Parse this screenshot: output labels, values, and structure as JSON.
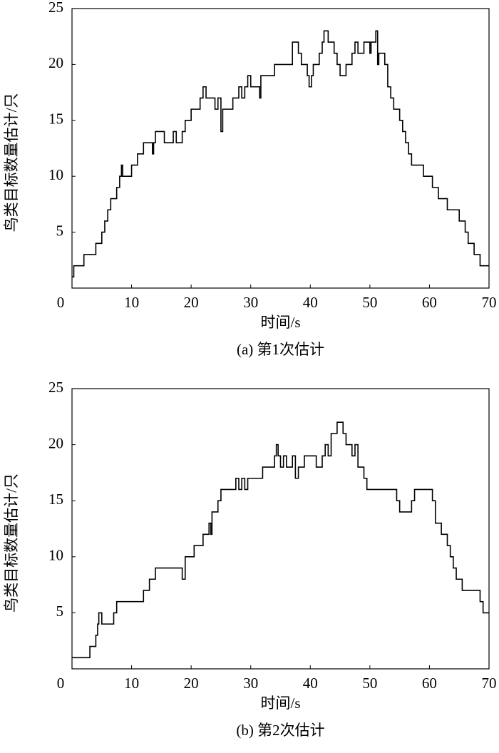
{
  "chart_data": [
    {
      "type": "line",
      "drawstyle": "steps-post",
      "xlabel": "时间/s",
      "ylabel": "鸟类目标数量估计/只",
      "caption": "(a) 第1次估计",
      "xlim": [
        0,
        70
      ],
      "ylim": [
        0,
        25
      ],
      "xticks": [
        0,
        10,
        20,
        30,
        40,
        50,
        60,
        70
      ],
      "yticks": [
        5,
        10,
        15,
        20,
        25
      ],
      "grid": false,
      "x": [
        0,
        0.3,
        2,
        4,
        5,
        5.5,
        6,
        6.5,
        7.5,
        8,
        8.3,
        8.5,
        10,
        11,
        12,
        13.5,
        13.7,
        14,
        15.5,
        17,
        17.5,
        18.5,
        19,
        20,
        21.5,
        22,
        22.5,
        24,
        24.5,
        25,
        25.3,
        27,
        28,
        28.5,
        29,
        29.5,
        30,
        31.5,
        31.7,
        34,
        37,
        38,
        38.5,
        39.5,
        39.8,
        40.2,
        40.5,
        41.5,
        42,
        42.3,
        43,
        44,
        44.5,
        45,
        46,
        47,
        47.5,
        48,
        49,
        50,
        50.2,
        51,
        51.3,
        51.5,
        52.5,
        53,
        53.5,
        54,
        55,
        55.5,
        56,
        56.5,
        57,
        59,
        60.5,
        61.5,
        63,
        65,
        66,
        66.5,
        67.5,
        68.5,
        70
      ],
      "series": [
        {
          "color": "#000000",
          "values": [
            1,
            2,
            3,
            4,
            5,
            6,
            7,
            8,
            9,
            10,
            11,
            10,
            11,
            12,
            13,
            12,
            13,
            14,
            13,
            14,
            13,
            14,
            15,
            16,
            17,
            18,
            17,
            16,
            17,
            14,
            16,
            17,
            18,
            17,
            18,
            19,
            18,
            17,
            19,
            20,
            22,
            21,
            20,
            19,
            18,
            19,
            20,
            21,
            22,
            23,
            22,
            21,
            20,
            19,
            20,
            21,
            22,
            21,
            22,
            21,
            22,
            23,
            20,
            21,
            20,
            18,
            17,
            16,
            15,
            14,
            13,
            12,
            11,
            10,
            9,
            8,
            7,
            6,
            5,
            4,
            3,
            2,
            2
          ]
        }
      ]
    },
    {
      "type": "line",
      "drawstyle": "steps-post",
      "xlabel": "时间/s",
      "ylabel": "鸟类目标数量估计/只",
      "caption": "(b) 第2次估计",
      "xlim": [
        0,
        70
      ],
      "ylim": [
        0,
        25
      ],
      "xticks": [
        0,
        10,
        20,
        30,
        40,
        50,
        60,
        70
      ],
      "yticks": [
        5,
        10,
        15,
        20,
        25
      ],
      "grid": false,
      "x": [
        0,
        3,
        4,
        4.3,
        4.5,
        5,
        7,
        7.5,
        12,
        13,
        14,
        18.5,
        19,
        20.2,
        20.5,
        22,
        23,
        23.3,
        23.5,
        24.5,
        25,
        27.5,
        28,
        28.5,
        29,
        29.5,
        32,
        34,
        34.3,
        34.6,
        35,
        35.5,
        36,
        37,
        37.5,
        38,
        39,
        41,
        42,
        42.5,
        43,
        43.5,
        44.5,
        45.5,
        46,
        47,
        47.5,
        48,
        49,
        49.5,
        54.5,
        55,
        57,
        57.5,
        60.5,
        61,
        62,
        63,
        63.5,
        64,
        64.5,
        65.5,
        68.5,
        69,
        70
      ],
      "series": [
        {
          "color": "#000000",
          "values": [
            1,
            2,
            3,
            4,
            5,
            4,
            5,
            6,
            7,
            8,
            9,
            8,
            10,
            10,
            11,
            12,
            13,
            12,
            14,
            15,
            16,
            17,
            16,
            17,
            16,
            17,
            18,
            19,
            20,
            19,
            18,
            19,
            18,
            19,
            17,
            18,
            19,
            18,
            19,
            20,
            19,
            21,
            22,
            21,
            20,
            19,
            20,
            18,
            17,
            16,
            15,
            14,
            15,
            16,
            15,
            13,
            12,
            11,
            10,
            9,
            8,
            7,
            6,
            5,
            5
          ]
        }
      ]
    }
  ]
}
